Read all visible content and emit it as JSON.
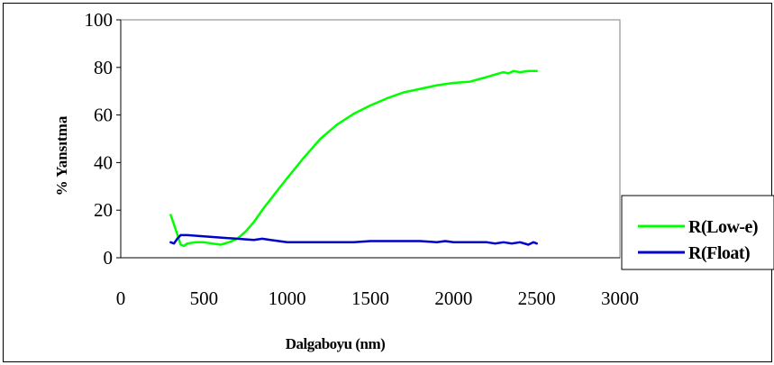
{
  "chart_data": {
    "type": "line",
    "title": "",
    "xlabel": "Dalgaboyu (nm)",
    "ylabel": "% Yansıtma",
    "xlim": [
      0,
      3000
    ],
    "ylim": [
      0,
      100
    ],
    "xticks": [
      "0",
      "500",
      "1000",
      "1500",
      "2000",
      "2500",
      "3000"
    ],
    "yticks": [
      "0",
      "20",
      "40",
      "60",
      "80",
      "100"
    ],
    "grid": false,
    "legend_position": "right",
    "series": [
      {
        "name": "R(Low-e)",
        "color": "#00ff00",
        "x": [
          300,
          330,
          360,
          380,
          400,
          450,
          500,
          550,
          600,
          650,
          700,
          750,
          800,
          830,
          860,
          900,
          950,
          1000,
          1100,
          1200,
          1300,
          1400,
          1500,
          1600,
          1700,
          1800,
          1900,
          2000,
          2100,
          2150,
          2200,
          2250,
          2300,
          2330,
          2360,
          2400,
          2450,
          2500
        ],
        "y": [
          18,
          12,
          5.5,
          5,
          6,
          6.5,
          6.5,
          6,
          5.5,
          6.5,
          8,
          11,
          15,
          18,
          21,
          24.5,
          29,
          33.5,
          42,
          50,
          56,
          60.5,
          64,
          67,
          69.5,
          71,
          72.5,
          73.5,
          74,
          75,
          76,
          77,
          78,
          77.5,
          78.5,
          78,
          78.5,
          78.5
        ]
      },
      {
        "name": "R(Float)",
        "color": "#0000cc",
        "x": [
          300,
          320,
          340,
          360,
          380,
          400,
          500,
          600,
          700,
          800,
          850,
          900,
          1000,
          1100,
          1200,
          1300,
          1400,
          1500,
          1600,
          1700,
          1800,
          1900,
          1950,
          2000,
          2100,
          2200,
          2250,
          2300,
          2350,
          2400,
          2450,
          2480,
          2500
        ],
        "y": [
          6.5,
          6,
          8,
          9.5,
          9.5,
          9.5,
          9,
          8.5,
          8,
          7.5,
          8,
          7.5,
          6.5,
          6.5,
          6.5,
          6.5,
          6.5,
          7,
          7,
          7,
          7,
          6.5,
          7,
          6.5,
          6.5,
          6.5,
          6,
          6.5,
          6,
          6.5,
          5.5,
          6.5,
          6
        ]
      }
    ]
  }
}
